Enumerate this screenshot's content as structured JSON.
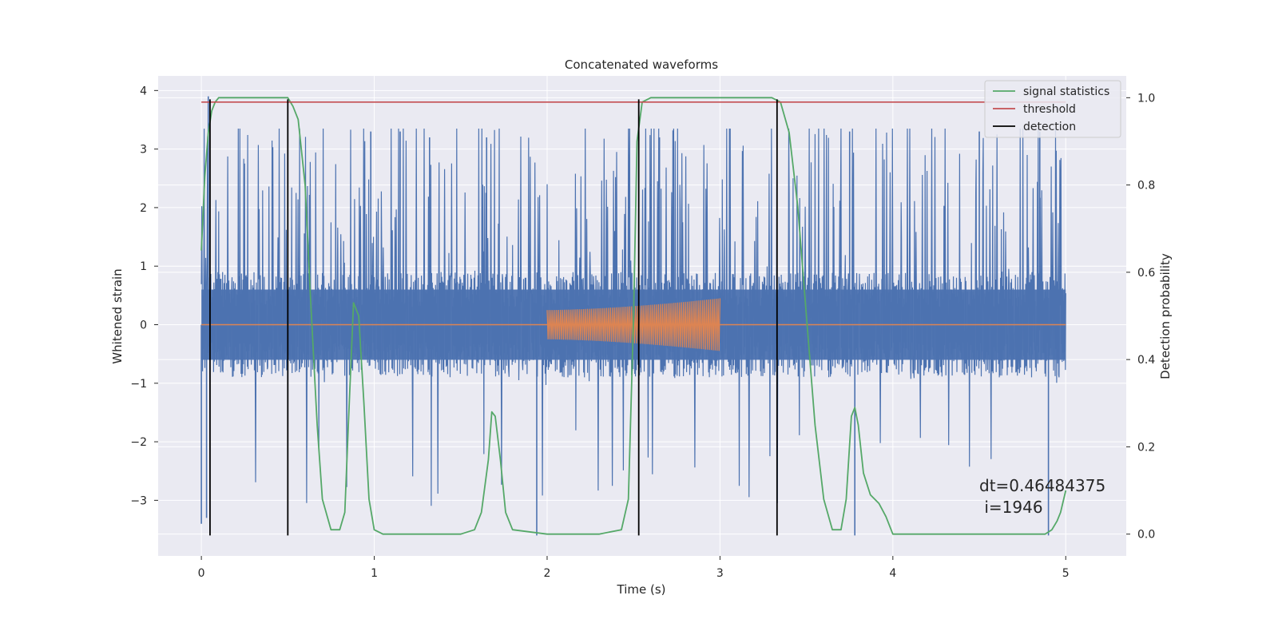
{
  "chart_data": {
    "type": "line",
    "title": "Concatenated waveforms",
    "xlabel": "Time (s)",
    "ylabel": "Whitened strain",
    "y2label": "Detection probability",
    "xlim": [
      -0.25,
      5.35
    ],
    "ylim": [
      -3.95,
      4.25
    ],
    "y2lim": [
      -0.05,
      1.05
    ],
    "xticks": [
      0,
      1,
      2,
      3,
      4,
      5
    ],
    "xtick_labels": [
      "0",
      "1",
      "2",
      "3",
      "4",
      "5"
    ],
    "yticks": [
      -3,
      -2,
      -1,
      0,
      1,
      2,
      3,
      4
    ],
    "ytick_labels": [
      "−3",
      "−2",
      "−1",
      "0",
      "1",
      "2",
      "3",
      "4"
    ],
    "y2ticks": [
      0.0,
      0.2,
      0.4,
      0.6,
      0.8,
      1.0
    ],
    "y2tick_labels": [
      "0.0",
      "0.2",
      "0.4",
      "0.6",
      "0.8",
      "1.0"
    ],
    "grid": true,
    "legend_position": "top-right",
    "colors": {
      "strain": "#4c72b0",
      "template": "#dd8452",
      "signal_statistics": "#55a868",
      "threshold": "#c44e52",
      "detection": "#000000",
      "plot_background": "#eaeaf2",
      "grid": "#ffffff"
    },
    "series": [
      {
        "name": "whitened strain",
        "axis": "left",
        "x_range": [
          0,
          5
        ],
        "band_low": -0.6,
        "band_high": 0.6,
        "peaks": [
          3.9,
          3.3,
          3.3,
          3.2,
          3.2,
          3.2,
          3.3,
          3.3,
          3.3
        ],
        "troughs": [
          -3.6,
          -3.4,
          -3.6,
          -3.6,
          -3.3
        ]
      },
      {
        "name": "injected template",
        "axis": "left",
        "x_range": [
          2.0,
          3.0
        ],
        "amplitude_start": 0.25,
        "amplitude_end": 0.45
      },
      {
        "name": "signal statistics",
        "axis": "right",
        "x": [
          0.0,
          0.02,
          0.04,
          0.06,
          0.08,
          0.1,
          0.15,
          0.3,
          0.45,
          0.5,
          0.53,
          0.56,
          0.6,
          0.63,
          0.67,
          0.7,
          0.75,
          0.8,
          0.83,
          0.85,
          0.88,
          0.91,
          0.94,
          0.97,
          1.0,
          1.05,
          1.2,
          1.5,
          1.58,
          1.62,
          1.66,
          1.68,
          1.7,
          1.73,
          1.76,
          1.8,
          2.0,
          2.3,
          2.43,
          2.47,
          2.5,
          2.52,
          2.55,
          2.6,
          2.8,
          3.0,
          3.3,
          3.35,
          3.4,
          3.45,
          3.5,
          3.55,
          3.6,
          3.65,
          3.7,
          3.73,
          3.76,
          3.78,
          3.8,
          3.83,
          3.87,
          3.92,
          3.96,
          4.0,
          4.2,
          4.6,
          4.88,
          4.92,
          4.95,
          4.97,
          5.0
        ],
        "y": [
          0.65,
          0.82,
          0.92,
          0.97,
          0.99,
          1.0,
          1.0,
          1.0,
          1.0,
          1.0,
          0.98,
          0.95,
          0.8,
          0.55,
          0.25,
          0.08,
          0.01,
          0.01,
          0.05,
          0.25,
          0.53,
          0.5,
          0.3,
          0.08,
          0.01,
          0.0,
          0.0,
          0.0,
          0.01,
          0.05,
          0.17,
          0.28,
          0.27,
          0.17,
          0.05,
          0.01,
          0.0,
          0.0,
          0.01,
          0.08,
          0.5,
          0.9,
          0.99,
          1.0,
          1.0,
          1.0,
          1.0,
          0.99,
          0.92,
          0.75,
          0.5,
          0.25,
          0.08,
          0.01,
          0.01,
          0.08,
          0.27,
          0.29,
          0.25,
          0.14,
          0.09,
          0.07,
          0.04,
          0.0,
          0.0,
          0.0,
          0.0,
          0.01,
          0.03,
          0.05,
          0.1
        ]
      },
      {
        "name": "threshold",
        "axis": "right",
        "x_range": [
          0,
          5
        ],
        "value": 0.99
      }
    ],
    "detections": [
      0.05,
      0.5,
      2.53,
      3.33
    ],
    "detection_ylim": [
      -3.6,
      3.85
    ],
    "legend": [
      "signal statistics",
      "threshold",
      "detection"
    ],
    "annotation": {
      "line1": "dt=0.46484375",
      "line2": " i=1946"
    }
  }
}
